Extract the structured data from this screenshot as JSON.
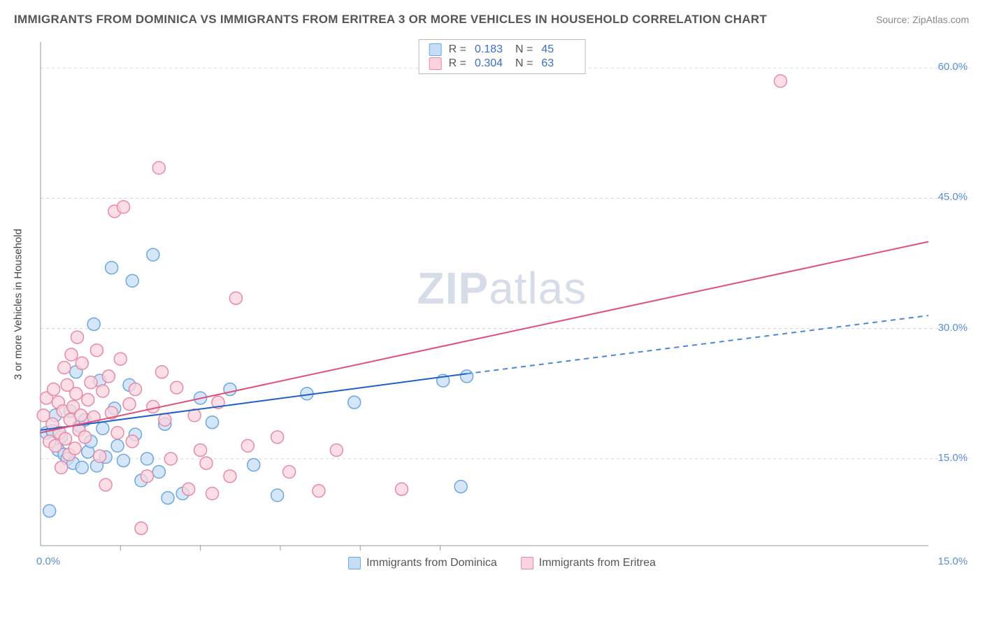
{
  "title": "IMMIGRANTS FROM DOMINICA VS IMMIGRANTS FROM ERITREA 3 OR MORE VEHICLES IN HOUSEHOLD CORRELATION CHART",
  "source": "Source: ZipAtlas.com",
  "watermark_bold": "ZIP",
  "watermark_rest": "atlas",
  "chart": {
    "type": "scatter",
    "background_color": "#ffffff",
    "grid_color": "#d8d8d8",
    "axis_color": "#999999",
    "tick_color": "#5b8fd6",
    "label_color": "#555555",
    "ylabel": "3 or more Vehicles in Household",
    "xlim": [
      0,
      15
    ],
    "ylim": [
      5,
      63
    ],
    "ytick_values": [
      15,
      30,
      45,
      60
    ],
    "ytick_labels": [
      "15.0%",
      "30.0%",
      "45.0%",
      "60.0%"
    ],
    "xtick_values": [
      0,
      15
    ],
    "xtick_labels": [
      "0.0%",
      "15.0%"
    ],
    "x_minor_ticks": [
      1.35,
      2.7,
      4.05,
      5.4,
      6.75
    ],
    "marker_radius": 9,
    "marker_stroke_width": 1.5,
    "series": [
      {
        "name": "Immigrants from Dominica",
        "fill": "#c5ddf5",
        "stroke": "#6ca7e0",
        "R": "0.183",
        "N": "45",
        "trend": {
          "x1": 0,
          "y1": 18.3,
          "x2": 7.2,
          "y2": 24.8,
          "x3": 15,
          "y3": 31.5,
          "solid_color": "#1f5fc9",
          "dash_color": "#4d88d6",
          "width": 2
        },
        "points": [
          [
            0.1,
            18.0
          ],
          [
            0.15,
            9.0
          ],
          [
            0.2,
            18.2
          ],
          [
            0.25,
            20.0
          ],
          [
            0.3,
            16.0
          ],
          [
            0.35,
            17.5
          ],
          [
            0.4,
            15.5
          ],
          [
            0.45,
            15.0
          ],
          [
            0.5,
            20.5
          ],
          [
            0.55,
            14.5
          ],
          [
            0.6,
            25.0
          ],
          [
            0.65,
            18.8
          ],
          [
            0.7,
            14.0
          ],
          [
            0.75,
            19.5
          ],
          [
            0.8,
            15.8
          ],
          [
            0.85,
            17.0
          ],
          [
            0.9,
            30.5
          ],
          [
            0.95,
            14.2
          ],
          [
            1.0,
            24.0
          ],
          [
            1.05,
            18.5
          ],
          [
            1.1,
            15.2
          ],
          [
            1.2,
            37.0
          ],
          [
            1.25,
            20.8
          ],
          [
            1.3,
            16.5
          ],
          [
            1.4,
            14.8
          ],
          [
            1.5,
            23.5
          ],
          [
            1.55,
            35.5
          ],
          [
            1.6,
            17.8
          ],
          [
            1.7,
            12.5
          ],
          [
            1.8,
            15.0
          ],
          [
            1.9,
            38.5
          ],
          [
            2.0,
            13.5
          ],
          [
            2.1,
            19.0
          ],
          [
            2.15,
            10.5
          ],
          [
            2.4,
            11.0
          ],
          [
            2.7,
            22.0
          ],
          [
            2.9,
            19.2
          ],
          [
            3.2,
            23.0
          ],
          [
            3.6,
            14.3
          ],
          [
            4.0,
            10.8
          ],
          [
            4.5,
            22.5
          ],
          [
            5.3,
            21.5
          ],
          [
            6.8,
            24.0
          ],
          [
            7.1,
            11.8
          ],
          [
            7.2,
            24.5
          ]
        ]
      },
      {
        "name": "Immigrants from Eritrea",
        "fill": "#fbd4de",
        "stroke": "#e78aa5",
        "R": "0.304",
        "N": "63",
        "trend": {
          "x1": 0,
          "y1": 18.0,
          "x2": 15,
          "y2": 40.0,
          "solid_color": "#e04f7a",
          "width": 2
        },
        "points": [
          [
            0.05,
            20.0
          ],
          [
            0.1,
            22.0
          ],
          [
            0.15,
            17.0
          ],
          [
            0.2,
            19.0
          ],
          [
            0.22,
            23.0
          ],
          [
            0.25,
            16.5
          ],
          [
            0.3,
            21.5
          ],
          [
            0.32,
            18.0
          ],
          [
            0.35,
            14.0
          ],
          [
            0.38,
            20.5
          ],
          [
            0.4,
            25.5
          ],
          [
            0.42,
            17.3
          ],
          [
            0.45,
            23.5
          ],
          [
            0.48,
            15.5
          ],
          [
            0.5,
            19.5
          ],
          [
            0.52,
            27.0
          ],
          [
            0.55,
            21.0
          ],
          [
            0.58,
            16.2
          ],
          [
            0.6,
            22.5
          ],
          [
            0.62,
            29.0
          ],
          [
            0.65,
            18.3
          ],
          [
            0.68,
            20.0
          ],
          [
            0.7,
            26.0
          ],
          [
            0.75,
            17.5
          ],
          [
            0.8,
            21.8
          ],
          [
            0.85,
            23.8
          ],
          [
            0.9,
            19.8
          ],
          [
            0.95,
            27.5
          ],
          [
            1.0,
            15.3
          ],
          [
            1.05,
            22.8
          ],
          [
            1.1,
            12.0
          ],
          [
            1.15,
            24.5
          ],
          [
            1.2,
            20.3
          ],
          [
            1.25,
            43.5
          ],
          [
            1.3,
            18.0
          ],
          [
            1.35,
            26.5
          ],
          [
            1.4,
            44.0
          ],
          [
            1.5,
            21.3
          ],
          [
            1.55,
            17.0
          ],
          [
            1.6,
            23.0
          ],
          [
            1.7,
            7.0
          ],
          [
            1.8,
            13.0
          ],
          [
            1.9,
            21.0
          ],
          [
            2.0,
            48.5
          ],
          [
            2.05,
            25.0
          ],
          [
            2.1,
            19.5
          ],
          [
            2.2,
            15.0
          ],
          [
            2.3,
            23.2
          ],
          [
            2.5,
            11.5
          ],
          [
            2.6,
            20.0
          ],
          [
            2.7,
            16.0
          ],
          [
            2.8,
            14.5
          ],
          [
            2.9,
            11.0
          ],
          [
            3.0,
            21.5
          ],
          [
            3.2,
            13.0
          ],
          [
            3.3,
            33.5
          ],
          [
            3.5,
            16.5
          ],
          [
            4.0,
            17.5
          ],
          [
            4.2,
            13.5
          ],
          [
            4.7,
            11.3
          ],
          [
            5.0,
            16.0
          ],
          [
            6.1,
            11.5
          ],
          [
            12.5,
            58.5
          ]
        ]
      }
    ],
    "legend_bottom": [
      {
        "label": "Immigrants from Dominica",
        "fill": "#c5ddf5",
        "stroke": "#6ca7e0"
      },
      {
        "label": "Immigrants from Eritrea",
        "fill": "#fbd4de",
        "stroke": "#e78aa5"
      }
    ]
  }
}
